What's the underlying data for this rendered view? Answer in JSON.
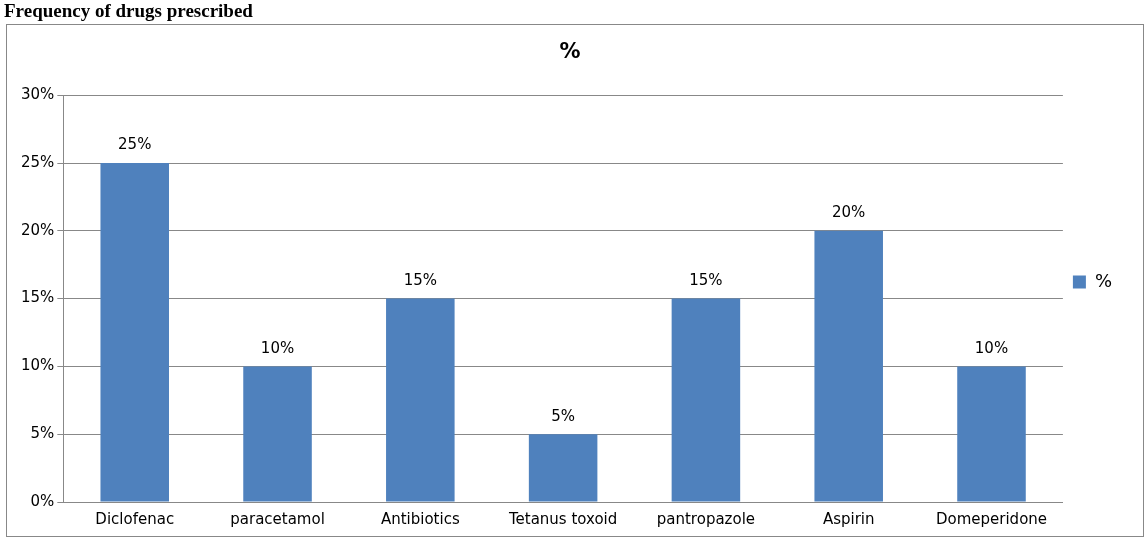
{
  "chart_data": {
    "type": "bar",
    "title": "%",
    "annotations": [
      "Frequency of drugs prescribed"
    ],
    "categories": [
      "Diclofenac",
      "paracetamol",
      "Antibiotics",
      "Tetanus toxoid",
      "pantropazole",
      "Aspirin",
      "Domeperidone"
    ],
    "series": [
      {
        "name": "%",
        "color": "#4f81bd",
        "values": [
          25,
          10,
          15,
          5,
          15,
          20,
          10
        ]
      }
    ],
    "ylim": [
      0,
      30
    ],
    "yticks": [
      {
        "value": 0,
        "label": "0%"
      },
      {
        "value": 5,
        "label": "5%"
      },
      {
        "value": 10,
        "label": "10%"
      },
      {
        "value": 15,
        "label": "15%"
      },
      {
        "value": 20,
        "label": "20%"
      },
      {
        "value": 25,
        "label": "25%"
      },
      {
        "value": 30,
        "label": "30%"
      }
    ],
    "value_labels": [
      "25%",
      "10%",
      "15%",
      "5%",
      "15%",
      "20%",
      "10%"
    ],
    "grid": "y",
    "legend": "right"
  }
}
